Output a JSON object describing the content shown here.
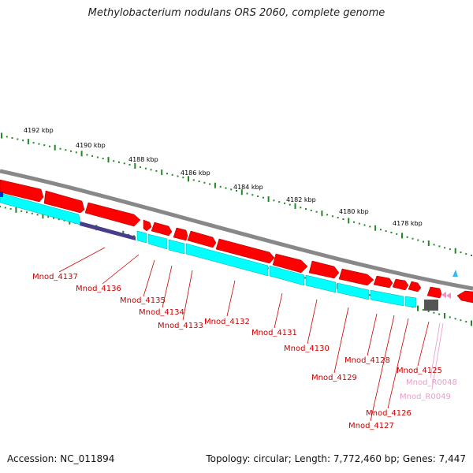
{
  "title": "Methylobacterium nodulans ORS 2060, complete genome",
  "footer": {
    "accession": "Accession: NC_011894",
    "topology": "Topology: circular; Length: 7,772,460 bp; Genes: 7,447"
  },
  "colors": {
    "backbone": "#888888",
    "cds": "#ff0000",
    "cds_outline": "#990000",
    "gene_box": "#00ffff",
    "scale_ticks": "#228822",
    "rna": "#ff88cc",
    "rna_label": "#ee99cc",
    "misc_feature": "#483d8b",
    "dark_feature": "#555555",
    "marker": "#33bbee",
    "label_red": "#cc0000"
  },
  "scale_labels": [
    "4192 kbp",
    "4190 kbp",
    "4188 kbp",
    "4186 kbp",
    "4184 kbp",
    "4182 kbp",
    "4180 kbp",
    "4178 kbp"
  ],
  "gene_labels": [
    "Mnod_4137",
    "Mnod_4136",
    "Mnod_4135",
    "Mnod_4134",
    "Mnod_4133",
    "Mnod_4132",
    "Mnod_4131",
    "Mnod_4130",
    "Mnod_4129",
    "Mnod_4128",
    "Mnod_4127",
    "Mnod_4126",
    "Mnod_4125",
    "Mnod_R0048",
    "Mnod_R0049"
  ]
}
